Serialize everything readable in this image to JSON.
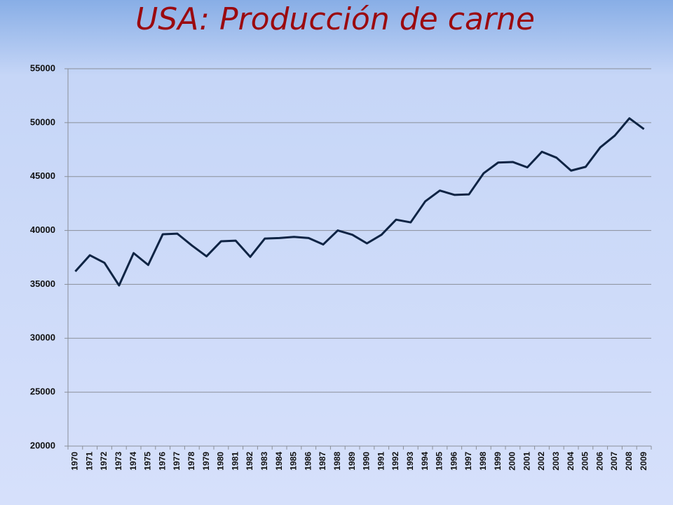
{
  "chart_data": {
    "type": "line",
    "title": "USA: Producción de carne",
    "categories": [
      "1970",
      "1971",
      "1972",
      "1973",
      "1974",
      "1975",
      "1976",
      "1977",
      "1978",
      "1979",
      "1980",
      "1981",
      "1982",
      "1983",
      "1984",
      "1985",
      "1986",
      "1987",
      "1988",
      "1989",
      "1990",
      "1991",
      "1992",
      "1993",
      "1994",
      "1995",
      "1996",
      "1997",
      "1998",
      "1999",
      "2000",
      "2001",
      "2002",
      "2003",
      "2004",
      "2005",
      "2006",
      "2007",
      "2008",
      "2009"
    ],
    "values": [
      36200,
      37700,
      37000,
      34900,
      37900,
      36800,
      39650,
      39700,
      38600,
      37600,
      39000,
      39050,
      37550,
      39250,
      39300,
      39400,
      39300,
      38700,
      40000,
      39600,
      38800,
      39600,
      41000,
      40750,
      42700,
      43700,
      43300,
      43350,
      45300,
      46300,
      46350,
      45850,
      47300,
      46750,
      45550,
      45900,
      47700,
      48800,
      50400,
      49400
    ],
    "color": "#0f2444",
    "ylim": [
      20000,
      55000
    ],
    "yticks": [
      20000,
      25000,
      30000,
      35000,
      40000,
      45000,
      50000,
      55000
    ],
    "grid": true
  }
}
